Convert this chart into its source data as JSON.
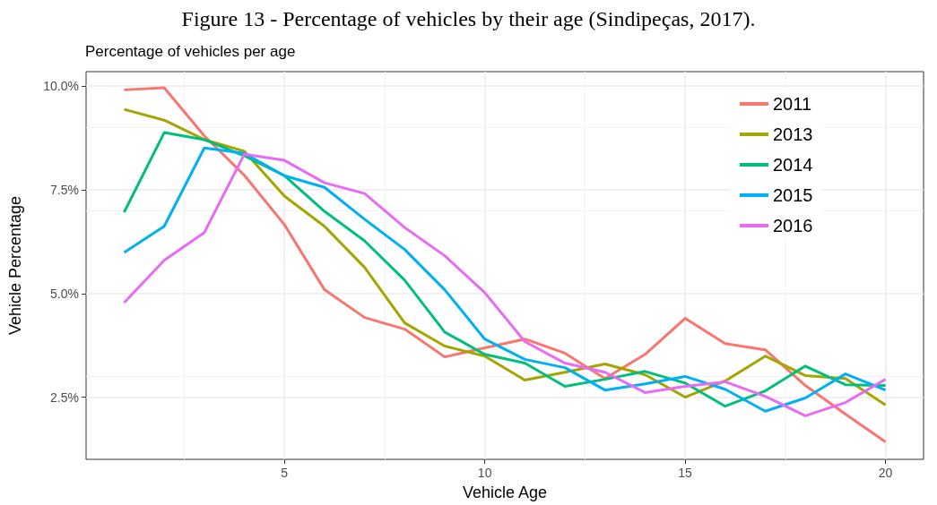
{
  "chart_data": {
    "type": "line",
    "title": "Figure 13 - Percentage of vehicles by their age (Sindipeças, 2017).",
    "subtitle": "Percentage of vehicles per age",
    "xlabel": "Vehicle Age",
    "ylabel": "Vehicle Percentage",
    "x": [
      1,
      2,
      3,
      4,
      5,
      6,
      7,
      8,
      9,
      10,
      11,
      12,
      13,
      14,
      15,
      16,
      17,
      18,
      19,
      20
    ],
    "series": [
      {
        "name": "2011",
        "color": "#f8766d",
        "values": [
          9.91,
          9.96,
          8.8,
          7.85,
          6.66,
          5.09,
          4.42,
          4.14,
          3.47,
          3.69,
          3.9,
          3.56,
          2.95,
          3.53,
          4.4,
          3.79,
          3.64,
          2.78,
          2.09,
          1.42
        ]
      },
      {
        "name": "2013",
        "color": "#a3a500",
        "values": [
          9.44,
          9.18,
          8.71,
          8.43,
          7.35,
          6.62,
          5.63,
          4.29,
          3.73,
          3.49,
          2.91,
          3.1,
          3.3,
          3.04,
          2.5,
          2.89,
          3.49,
          3.02,
          2.95,
          2.31
        ]
      },
      {
        "name": "2014",
        "color": "#00bf7d",
        "values": [
          6.96,
          8.88,
          8.71,
          8.32,
          7.84,
          6.98,
          6.27,
          5.32,
          4.07,
          3.53,
          3.32,
          2.76,
          2.93,
          3.12,
          2.84,
          2.28,
          2.65,
          3.25,
          2.8,
          2.78
        ]
      },
      {
        "name": "2015",
        "color": "#00b0f6",
        "values": [
          5.99,
          6.62,
          8.51,
          8.38,
          7.84,
          7.56,
          6.79,
          6.06,
          5.09,
          3.9,
          3.41,
          3.21,
          2.67,
          2.82,
          3.0,
          2.69,
          2.16,
          2.48,
          3.06,
          2.67
        ]
      },
      {
        "name": "2016",
        "color": "#e76bf3",
        "values": [
          4.78,
          5.8,
          6.47,
          8.36,
          8.21,
          7.67,
          7.41,
          6.59,
          5.91,
          5.02,
          3.84,
          3.32,
          3.1,
          2.61,
          2.76,
          2.87,
          2.52,
          2.05,
          2.37,
          2.93
        ]
      }
    ],
    "xlim": [
      0.05,
      20.95
    ],
    "ylim": [
      1.0,
      10.35
    ],
    "xticks": [
      5,
      10,
      15,
      20
    ],
    "yticks": [
      {
        "value": 2.5,
        "label": "2.5%"
      },
      {
        "value": 5,
        "label": "5.0%"
      },
      {
        "value": 7.5,
        "label": "7.5%"
      },
      {
        "value": 10,
        "label": "10.0%"
      }
    ],
    "grid": true,
    "legend": "top right",
    "marker": "none",
    "line_style": "solid"
  }
}
